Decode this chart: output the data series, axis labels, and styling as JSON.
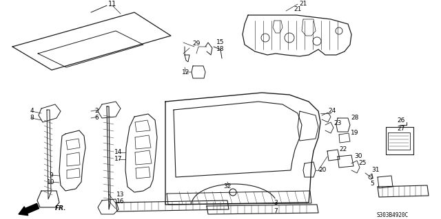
{
  "background_color": "#ffffff",
  "line_color": "#1a1a1a",
  "label_color": "#000000",
  "part_code": "S303B4920C",
  "fig_width": 6.4,
  "fig_height": 3.19,
  "dpi": 100
}
